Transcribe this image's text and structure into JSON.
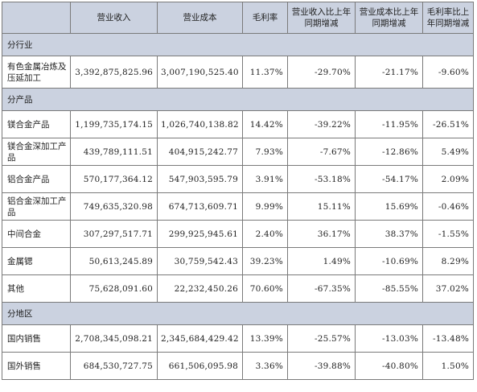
{
  "headers": [
    "",
    "营业收入",
    "营业成本",
    "毛利率",
    "营业收入比上年同期增减",
    "营业成本比上年同期增减",
    "毛利率比上年同期增减"
  ],
  "sections": [
    {
      "title": "分行业",
      "rows": [
        {
          "label": "有色金属冶炼及压延加工",
          "revenue": "3,392,875,825.96",
          "cost": "3,007,190,525.40",
          "margin": "11.37%",
          "rev_change": "-29.70%",
          "cost_change": "-21.17%",
          "margin_change": "-9.60%"
        }
      ]
    },
    {
      "title": "分产品",
      "rows": [
        {
          "label": "镁合金产品",
          "revenue": "1,199,735,174.15",
          "cost": "1,026,740,138.82",
          "margin": "14.42%",
          "rev_change": "-39.22%",
          "cost_change": "-11.95%",
          "margin_change": "-26.51%"
        },
        {
          "label": "镁合金深加工产品",
          "revenue": "439,789,111.51",
          "cost": "404,915,242.77",
          "margin": "7.93%",
          "rev_change": "-7.67%",
          "cost_change": "-12.86%",
          "margin_change": "5.49%"
        },
        {
          "label": "铝合金产品",
          "revenue": "570,177,364.12",
          "cost": "547,903,595.79",
          "margin": "3.91%",
          "rev_change": "-53.18%",
          "cost_change": "-54.17%",
          "margin_change": "2.09%"
        },
        {
          "label": "铝合金深加工产品",
          "revenue": "749,635,320.98",
          "cost": "674,713,609.71",
          "margin": "9.99%",
          "rev_change": "15.11%",
          "cost_change": "15.69%",
          "margin_change": "-0.46%"
        },
        {
          "label": "中间合金",
          "revenue": "307,297,517.71",
          "cost": "299,925,945.61",
          "margin": "2.40%",
          "rev_change": "36.17%",
          "cost_change": "38.37%",
          "margin_change": "-1.55%"
        },
        {
          "label": "金属锶",
          "revenue": "50,613,245.89",
          "cost": "30,759,542.43",
          "margin": "39.23%",
          "rev_change": "1.49%",
          "cost_change": "-10.69%",
          "margin_change": "8.29%"
        },
        {
          "label": "其他",
          "revenue": "75,628,091.60",
          "cost": "22,232,450.26",
          "margin": "70.60%",
          "rev_change": "-67.35%",
          "cost_change": "-85.55%",
          "margin_change": "37.02%"
        }
      ]
    },
    {
      "title": "分地区",
      "rows": [
        {
          "label": "国内销售",
          "revenue": "2,708,345,098.21",
          "cost": "2,345,684,429.42",
          "margin": "13.39%",
          "rev_change": "-25.57%",
          "cost_change": "-13.03%",
          "margin_change": "-13.48%"
        },
        {
          "label": "国外销售",
          "revenue": "684,530,727.75",
          "cost": "661,506,095.98",
          "margin": "3.36%",
          "rev_change": "-39.88%",
          "cost_change": "-40.80%",
          "margin_change": "1.50%"
        }
      ]
    }
  ]
}
